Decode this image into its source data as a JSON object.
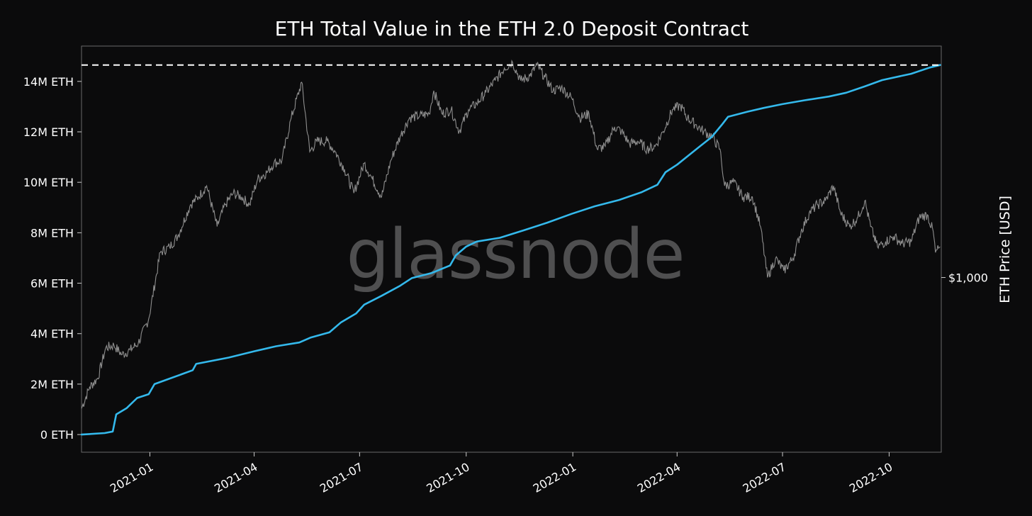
{
  "chart_data": {
    "type": "line",
    "title": "ETH Total Value in the ETH 2.0 Deposit Contract",
    "watermark": "glassnode",
    "y_left": {
      "ticks": [
        0,
        2000000,
        4000000,
        6000000,
        8000000,
        10000000,
        12000000,
        14000000
      ],
      "tick_labels": [
        "0 ETH",
        "2M ETH",
        "4M ETH",
        "6M ETH",
        "8M ETH",
        "10M ETH",
        "12M ETH",
        "14M ETH"
      ],
      "range": [
        -700000,
        15400000
      ]
    },
    "y_right": {
      "label": "ETH Price [USD]",
      "scale": "log",
      "tick_values": [
        1000
      ],
      "tick_labels": [
        "$1,000"
      ],
      "range": [
        280,
        5400
      ]
    },
    "x": {
      "range": [
        "2020-11-03",
        "2022-11-15"
      ],
      "ticks": [
        "2021-01-01",
        "2021-04-01",
        "2021-07-01",
        "2021-10-01",
        "2022-01-01",
        "2022-04-01",
        "2022-07-01",
        "2022-10-01"
      ],
      "tick_labels": [
        "2021-01",
        "2021-04",
        "2021-07",
        "2021-10",
        "2022-01",
        "2022-04",
        "2022-07",
        "2022-10"
      ]
    },
    "reference_line": {
      "type": "horizontal-dashed",
      "value": 14650000,
      "color": "#ffffff"
    },
    "colors": {
      "background": "#0b0b0c",
      "deposit": "#34b9ec",
      "price": "#8e8e8e",
      "frame": "#6a6a6a"
    },
    "series": [
      {
        "axis": "left",
        "color": "#34b9ec",
        "points": [
          [
            "2020-11-03",
            0
          ],
          [
            "2020-11-23",
            60000
          ],
          [
            "2020-11-30",
            120000
          ],
          [
            "2020-12-03",
            800000
          ],
          [
            "2020-12-12",
            1050000
          ],
          [
            "2020-12-21",
            1450000
          ],
          [
            "2020-12-31",
            1600000
          ],
          [
            "2021-01-05",
            2000000
          ],
          [
            "2021-01-20",
            2250000
          ],
          [
            "2021-02-07",
            2550000
          ],
          [
            "2021-02-10",
            2800000
          ],
          [
            "2021-03-10",
            3050000
          ],
          [
            "2021-04-01",
            3300000
          ],
          [
            "2021-04-20",
            3500000
          ],
          [
            "2021-05-10",
            3650000
          ],
          [
            "2021-05-20",
            3850000
          ],
          [
            "2021-06-05",
            4050000
          ],
          [
            "2021-06-15",
            4450000
          ],
          [
            "2021-06-28",
            4800000
          ],
          [
            "2021-07-05",
            5150000
          ],
          [
            "2021-07-20",
            5500000
          ],
          [
            "2021-08-05",
            5900000
          ],
          [
            "2021-08-15",
            6200000
          ],
          [
            "2021-09-01",
            6400000
          ],
          [
            "2021-09-17",
            6700000
          ],
          [
            "2021-09-22",
            7100000
          ],
          [
            "2021-10-01",
            7450000
          ],
          [
            "2021-10-10",
            7650000
          ],
          [
            "2021-10-30",
            7800000
          ],
          [
            "2021-11-20",
            8100000
          ],
          [
            "2021-12-10",
            8400000
          ],
          [
            "2021-12-31",
            8750000
          ],
          [
            "2022-01-20",
            9050000
          ],
          [
            "2022-02-10",
            9300000
          ],
          [
            "2022-03-01",
            9600000
          ],
          [
            "2022-03-15",
            9900000
          ],
          [
            "2022-03-22",
            10400000
          ],
          [
            "2022-04-01",
            10700000
          ],
          [
            "2022-04-20",
            11400000
          ],
          [
            "2022-05-01",
            11800000
          ],
          [
            "2022-05-10",
            12300000
          ],
          [
            "2022-05-15",
            12600000
          ],
          [
            "2022-06-01",
            12800000
          ],
          [
            "2022-06-15",
            12950000
          ],
          [
            "2022-07-01",
            13100000
          ],
          [
            "2022-07-20",
            13250000
          ],
          [
            "2022-08-10",
            13400000
          ],
          [
            "2022-08-25",
            13550000
          ],
          [
            "2022-09-10",
            13800000
          ],
          [
            "2022-09-25",
            14050000
          ],
          [
            "2022-10-20",
            14300000
          ],
          [
            "2022-11-05",
            14550000
          ],
          [
            "2022-11-14",
            14650000
          ]
        ]
      },
      {
        "axis": "right",
        "color": "#8e8e8e",
        "points": [
          [
            "2020-11-03",
            385
          ],
          [
            "2020-11-10",
            450
          ],
          [
            "2020-11-17",
            480
          ],
          [
            "2020-11-24",
            600
          ],
          [
            "2020-12-01",
            610
          ],
          [
            "2020-12-08",
            570
          ],
          [
            "2020-12-15",
            590
          ],
          [
            "2020-12-22",
            620
          ],
          [
            "2020-12-31",
            740
          ],
          [
            "2021-01-10",
            1200
          ],
          [
            "2021-01-18",
            1250
          ],
          [
            "2021-01-25",
            1350
          ],
          [
            "2021-02-05",
            1700
          ],
          [
            "2021-02-12",
            1800
          ],
          [
            "2021-02-19",
            1950
          ],
          [
            "2021-02-28",
            1450
          ],
          [
            "2021-03-07",
            1700
          ],
          [
            "2021-03-14",
            1850
          ],
          [
            "2021-03-21",
            1800
          ],
          [
            "2021-03-28",
            1700
          ],
          [
            "2021-04-04",
            2050
          ],
          [
            "2021-04-12",
            2150
          ],
          [
            "2021-04-18",
            2300
          ],
          [
            "2021-04-25",
            2350
          ],
          [
            "2021-05-03",
            3200
          ],
          [
            "2021-05-12",
            4150
          ],
          [
            "2021-05-19",
            2500
          ],
          [
            "2021-05-25",
            2700
          ],
          [
            "2021-06-03",
            2700
          ],
          [
            "2021-06-10",
            2500
          ],
          [
            "2021-06-18",
            2200
          ],
          [
            "2021-06-26",
            1850
          ],
          [
            "2021-07-05",
            2300
          ],
          [
            "2021-07-12",
            2050
          ],
          [
            "2021-07-20",
            1800
          ],
          [
            "2021-07-28",
            2350
          ],
          [
            "2021-08-05",
            2800
          ],
          [
            "2021-08-13",
            3200
          ],
          [
            "2021-08-22",
            3250
          ],
          [
            "2021-08-30",
            3300
          ],
          [
            "2021-09-03",
            3900
          ],
          [
            "2021-09-10",
            3300
          ],
          [
            "2021-09-18",
            3400
          ],
          [
            "2021-09-25",
            2900
          ],
          [
            "2021-10-03",
            3400
          ],
          [
            "2021-10-10",
            3550
          ],
          [
            "2021-10-18",
            3850
          ],
          [
            "2021-10-26",
            4200
          ],
          [
            "2021-11-03",
            4600
          ],
          [
            "2021-11-10",
            4800
          ],
          [
            "2021-11-17",
            4200
          ],
          [
            "2021-11-25",
            4350
          ],
          [
            "2021-12-01",
            4700
          ],
          [
            "2021-12-08",
            4300
          ],
          [
            "2021-12-15",
            3900
          ],
          [
            "2021-12-22",
            4000
          ],
          [
            "2021-12-31",
            3700
          ],
          [
            "2022-01-07",
            3200
          ],
          [
            "2022-01-15",
            3300
          ],
          [
            "2022-01-22",
            2550
          ],
          [
            "2022-01-29",
            2600
          ],
          [
            "2022-02-06",
            3000
          ],
          [
            "2022-02-12",
            2900
          ],
          [
            "2022-02-19",
            2650
          ],
          [
            "2022-02-26",
            2700
          ],
          [
            "2022-03-06",
            2550
          ],
          [
            "2022-03-13",
            2600
          ],
          [
            "2022-03-20",
            2900
          ],
          [
            "2022-03-28",
            3400
          ],
          [
            "2022-04-04",
            3500
          ],
          [
            "2022-04-10",
            3200
          ],
          [
            "2022-04-17",
            3050
          ],
          [
            "2022-04-24",
            2900
          ],
          [
            "2022-05-01",
            2800
          ],
          [
            "2022-05-08",
            2550
          ],
          [
            "2022-05-12",
            1950
          ],
          [
            "2022-05-20",
            2000
          ],
          [
            "2022-05-28",
            1800
          ],
          [
            "2022-06-05",
            1800
          ],
          [
            "2022-06-12",
            1450
          ],
          [
            "2022-06-18",
            1000
          ],
          [
            "2022-06-25",
            1150
          ],
          [
            "2022-07-02",
            1050
          ],
          [
            "2022-07-10",
            1150
          ],
          [
            "2022-07-17",
            1400
          ],
          [
            "2022-07-24",
            1600
          ],
          [
            "2022-07-31",
            1700
          ],
          [
            "2022-08-07",
            1750
          ],
          [
            "2022-08-14",
            1950
          ],
          [
            "2022-08-20",
            1600
          ],
          [
            "2022-08-28",
            1450
          ],
          [
            "2022-09-04",
            1550
          ],
          [
            "2022-09-10",
            1750
          ],
          [
            "2022-09-15",
            1450
          ],
          [
            "2022-09-21",
            1250
          ],
          [
            "2022-09-28",
            1300
          ],
          [
            "2022-10-05",
            1350
          ],
          [
            "2022-10-12",
            1280
          ],
          [
            "2022-10-20",
            1300
          ],
          [
            "2022-10-27",
            1550
          ],
          [
            "2022-11-03",
            1580
          ],
          [
            "2022-11-08",
            1400
          ],
          [
            "2022-11-10",
            1200
          ],
          [
            "2022-11-14",
            1250
          ]
        ]
      }
    ]
  }
}
